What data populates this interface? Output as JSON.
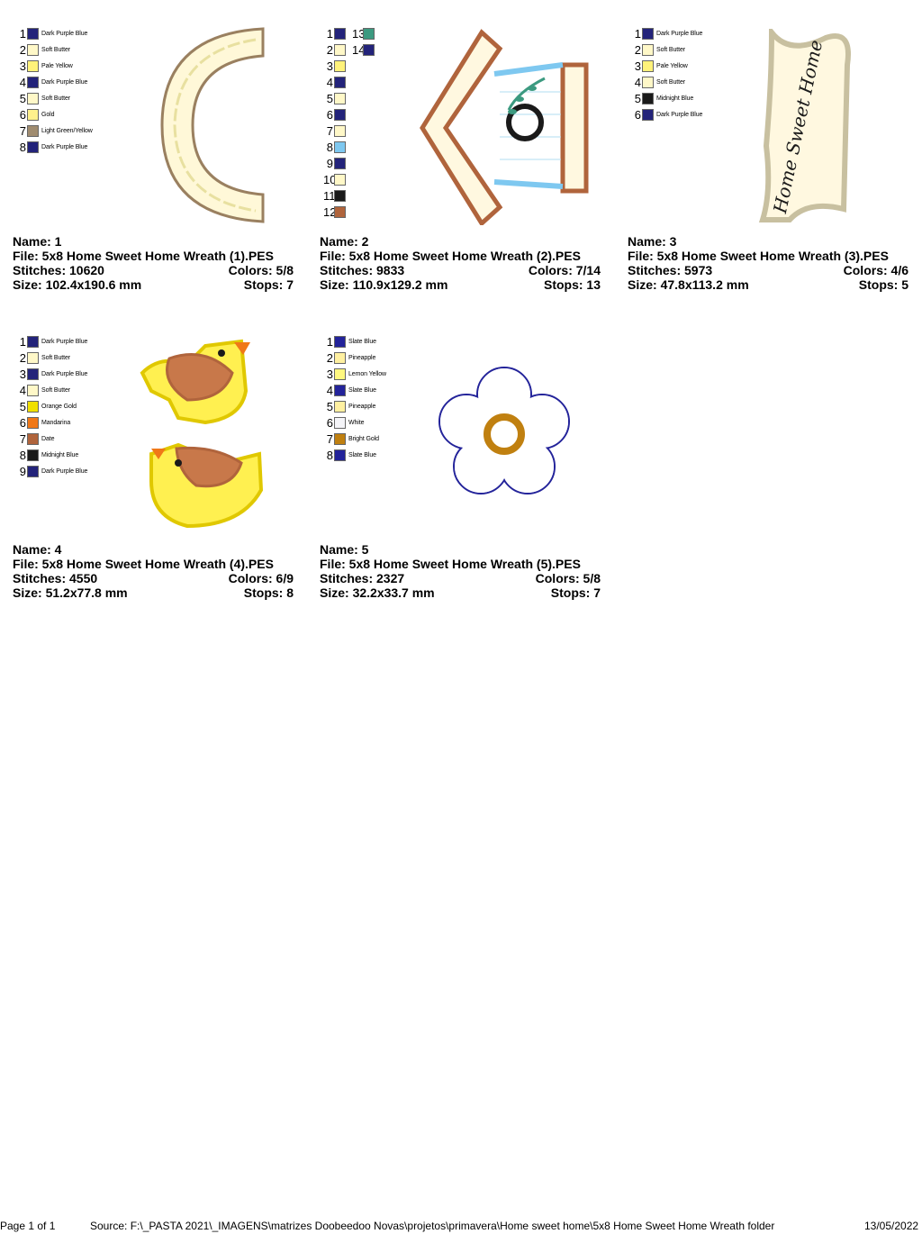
{
  "designs": [
    {
      "name_label": "Name: 1",
      "file_label": "File: 5x8 Home Sweet Home Wreath (1).PES",
      "stitches_label": "Stitches: 10620",
      "colors_label": "Colors: 5/8",
      "size_label": "Size: 102.4x190.6 mm",
      "stops_label": "Stops: 7",
      "art": "letter-c-icon",
      "colors": [
        {
          "n": "1",
          "name": "Dark Purple Blue",
          "hex": "#23237a"
        },
        {
          "n": "2",
          "name": "Soft Butter",
          "hex": "#fff8c8"
        },
        {
          "n": "3",
          "name": "Pale Yellow",
          "hex": "#fff27a"
        },
        {
          "n": "4",
          "name": "Dark Purple Blue",
          "hex": "#23237a"
        },
        {
          "n": "5",
          "name": "Soft Butter",
          "hex": "#fff8c8"
        },
        {
          "n": "6",
          "name": "Gold",
          "hex": "#fff08c"
        },
        {
          "n": "7",
          "name": "Light Green/Yellow",
          "hex": "#a08c70"
        },
        {
          "n": "8",
          "name": "Dark Purple Blue",
          "hex": "#23237a"
        }
      ]
    },
    {
      "name_label": "Name: 2",
      "file_label": "File: 5x8 Home Sweet Home Wreath (2).PES",
      "stitches_label": "Stitches: 9833",
      "colors_label": "Colors: 7/14",
      "size_label": "Size: 110.9x129.2 mm",
      "stops_label": "Stops: 13",
      "art": "birdhouse-icon",
      "colors": [
        {
          "n": "1",
          "name": "",
          "hex": "#23237a"
        },
        {
          "n": "2",
          "name": "",
          "hex": "#fff8c8"
        },
        {
          "n": "3",
          "name": "",
          "hex": "#fff27a"
        },
        {
          "n": "4",
          "name": "",
          "hex": "#23237a"
        },
        {
          "n": "5",
          "name": "",
          "hex": "#fff8c8"
        },
        {
          "n": "6",
          "name": "",
          "hex": "#23237a"
        },
        {
          "n": "7",
          "name": "",
          "hex": "#fff8c8"
        },
        {
          "n": "8",
          "name": "",
          "hex": "#7ec8f0"
        },
        {
          "n": "9",
          "name": "",
          "hex": "#23237a"
        },
        {
          "n": "10",
          "name": "",
          "hex": "#fff8c8"
        },
        {
          "n": "11",
          "name": "",
          "hex": "#1a1a1a"
        },
        {
          "n": "12",
          "name": "",
          "hex": "#b0643c"
        },
        {
          "n": "13",
          "name": "",
          "hex": "#3c9a80"
        },
        {
          "n": "14",
          "name": "",
          "hex": "#23237a"
        }
      ]
    },
    {
      "name_label": "Name: 3",
      "file_label": "File: 5x8 Home Sweet Home Wreath (3).PES",
      "stitches_label": "Stitches: 5973",
      "colors_label": "Colors: 4/6",
      "size_label": "Size: 47.8x113.2 mm",
      "stops_label": "Stops: 5",
      "art": "banner-icon",
      "banner_text": "Home Sweet Home",
      "colors": [
        {
          "n": "1",
          "name": "Dark Purple Blue",
          "hex": "#23237a"
        },
        {
          "n": "2",
          "name": "Soft Butter",
          "hex": "#fff8c8"
        },
        {
          "n": "3",
          "name": "Pale Yellow",
          "hex": "#fff27a"
        },
        {
          "n": "4",
          "name": "Soft Butter",
          "hex": "#fff8c8"
        },
        {
          "n": "5",
          "name": "Midnight Blue",
          "hex": "#1a1a1a"
        },
        {
          "n": "6",
          "name": "Dark Purple Blue",
          "hex": "#23237a"
        }
      ]
    },
    {
      "name_label": "Name: 4",
      "file_label": "File: 5x8 Home Sweet Home Wreath (4).PES",
      "stitches_label": "Stitches: 4550",
      "colors_label": "Colors: 6/9",
      "size_label": "Size: 51.2x77.8 mm",
      "stops_label": "Stops: 8",
      "art": "birds-icon",
      "colors": [
        {
          "n": "1",
          "name": "Dark Purple Blue",
          "hex": "#23237a"
        },
        {
          "n": "2",
          "name": "Soft Butter",
          "hex": "#fff8c8"
        },
        {
          "n": "3",
          "name": "Dark Purple Blue",
          "hex": "#23237a"
        },
        {
          "n": "4",
          "name": "Soft Butter",
          "hex": "#fff8c8"
        },
        {
          "n": "5",
          "name": "Orange Gold",
          "hex": "#f0e000"
        },
        {
          "n": "6",
          "name": "Mandarina",
          "hex": "#f07818"
        },
        {
          "n": "7",
          "name": "Date",
          "hex": "#b0643c"
        },
        {
          "n": "8",
          "name": "Midnight Blue",
          "hex": "#1a1a1a"
        },
        {
          "n": "9",
          "name": "Dark Purple Blue",
          "hex": "#23237a"
        }
      ]
    },
    {
      "name_label": "Name: 5",
      "file_label": "File: 5x8 Home Sweet Home Wreath (5).PES",
      "stitches_label": "Stitches: 2327",
      "colors_label": "Colors: 5/8",
      "size_label": "Size: 32.2x33.7 mm",
      "stops_label": "Stops: 7",
      "art": "flower-icon",
      "colors": [
        {
          "n": "1",
          "name": "Slate Blue",
          "hex": "#23239a"
        },
        {
          "n": "2",
          "name": "Pineapple",
          "hex": "#fff0a0"
        },
        {
          "n": "3",
          "name": "Lemon Yellow",
          "hex": "#fff880"
        },
        {
          "n": "4",
          "name": "Slate Blue",
          "hex": "#23239a"
        },
        {
          "n": "5",
          "name": "Pineapple",
          "hex": "#fff0a0"
        },
        {
          "n": "6",
          "name": "White",
          "hex": "#f4f4f8"
        },
        {
          "n": "7",
          "name": "Bright Gold",
          "hex": "#c08010"
        },
        {
          "n": "8",
          "name": "Slate Blue",
          "hex": "#23239a"
        }
      ]
    }
  ],
  "footer": {
    "page": "Page 1 of 1",
    "source": "Source: F:\\_PASTA 2021\\_IMAGENS\\matrizes Doobeedoo Novas\\projetos\\primavera\\Home sweet home\\5x8 Home Sweet Home Wreath folder",
    "date": "13/05/2022"
  }
}
